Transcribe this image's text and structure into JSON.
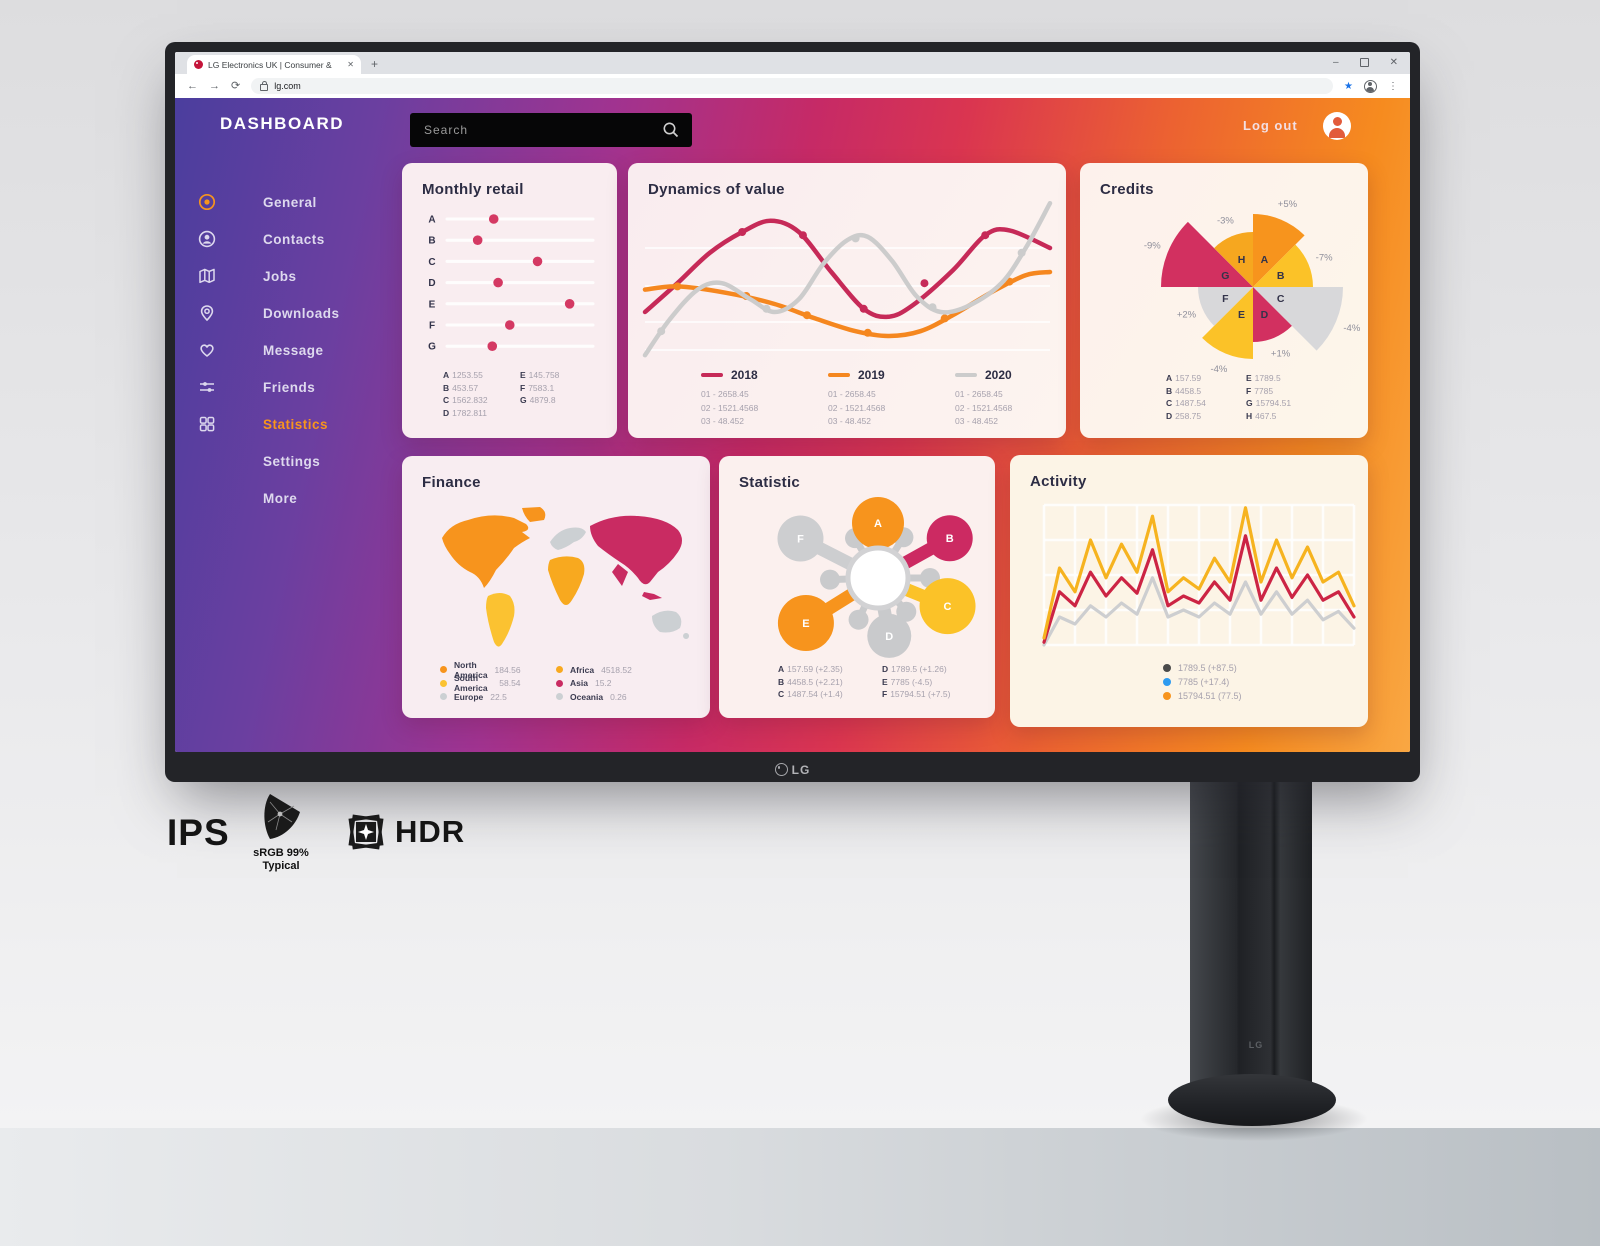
{
  "browser": {
    "tab_title": "LG Electronics UK | Consumer &",
    "url": "lg.com",
    "new_tab": "+",
    "tab_close": "✕",
    "controls": {
      "minimize": "–",
      "close": "✕"
    },
    "icons": {
      "back": "←",
      "forward": "→",
      "reload": "⟳",
      "star": "★",
      "menu": "⋮"
    }
  },
  "dashboard": {
    "title": "DASHBOARD",
    "search_placeholder": "Search",
    "logout_label": "Log out",
    "sidebar_items": [
      {
        "id": "general",
        "label": "General",
        "icon": "circle-dot",
        "icon_color": "#f7941d",
        "active": false
      },
      {
        "id": "contacts",
        "label": "Contacts",
        "icon": "user-circle",
        "active": false
      },
      {
        "id": "jobs",
        "label": "Jobs",
        "icon": "map",
        "active": false
      },
      {
        "id": "downloads",
        "label": "Downloads",
        "icon": "pin",
        "active": false
      },
      {
        "id": "message",
        "label": "Message",
        "icon": "heart",
        "active": false
      },
      {
        "id": "friends",
        "label": "Friends",
        "icon": "sliders",
        "active": false
      },
      {
        "id": "statistics",
        "label": "Statistics",
        "icon": "grid",
        "active": true
      },
      {
        "id": "settings",
        "label": "Settings",
        "icon": null,
        "active": false
      },
      {
        "id": "more",
        "label": "More",
        "icon": null,
        "active": false
      }
    ]
  },
  "chart_data": [
    {
      "id": "monthly-retail",
      "type": "scatter",
      "title": "Monthly retail",
      "rows": [
        {
          "label": "A",
          "pos": 0.32,
          "value": 1253.55
        },
        {
          "label": "B",
          "pos": 0.21,
          "value": 453.57
        },
        {
          "label": "C",
          "pos": 0.62,
          "value": 1562.832
        },
        {
          "label": "D",
          "pos": 0.35,
          "value": 1782.811
        },
        {
          "label": "E",
          "pos": 0.84,
          "value": 145.758
        },
        {
          "label": "F",
          "pos": 0.43,
          "value": 7583.1
        },
        {
          "label": "G",
          "pos": 0.31,
          "value": 4879.8
        }
      ],
      "dot_color": "#d43963",
      "footer": [
        [
          "A",
          "1253.55"
        ],
        [
          "B",
          "453.57"
        ],
        [
          "C",
          "1562.832"
        ],
        [
          "D",
          "1782.811"
        ],
        [
          "E",
          "145.758"
        ],
        [
          "F",
          "7583.1"
        ],
        [
          "G",
          "4879.8"
        ]
      ],
      "footer_split": 4
    },
    {
      "id": "dynamics",
      "type": "line",
      "title": "Dynamics of value",
      "series": [
        {
          "name": "2018",
          "color": "#c62a58",
          "points": [
            [
              0,
              0.7
            ],
            [
              0.08,
              0.52
            ],
            [
              0.16,
              0.33
            ],
            [
              0.24,
              0.2
            ],
            [
              0.31,
              0.13
            ],
            [
              0.38,
              0.2
            ],
            [
              0.46,
              0.45
            ],
            [
              0.54,
              0.68
            ],
            [
              0.6,
              0.73
            ],
            [
              0.66,
              0.66
            ],
            [
              0.76,
              0.44
            ],
            [
              0.84,
              0.22
            ],
            [
              0.9,
              0.19
            ],
            [
              1,
              0.3
            ]
          ],
          "markers": [
            [
              0.24,
              0.2
            ],
            [
              0.39,
              0.22
            ],
            [
              0.54,
              0.68
            ],
            [
              0.69,
              0.52
            ],
            [
              0.84,
              0.22
            ]
          ],
          "values": [
            "01 - 2658.45",
            "02 - 1521.4568",
            "03 - 48.452"
          ]
        },
        {
          "name": "2019",
          "color": "#f5871f",
          "points": [
            [
              0,
              0.56
            ],
            [
              0.08,
              0.54
            ],
            [
              0.2,
              0.58
            ],
            [
              0.32,
              0.65
            ],
            [
              0.42,
              0.74
            ],
            [
              0.52,
              0.82
            ],
            [
              0.6,
              0.85
            ],
            [
              0.68,
              0.82
            ],
            [
              0.76,
              0.72
            ],
            [
              0.86,
              0.57
            ],
            [
              0.94,
              0.47
            ],
            [
              1,
              0.45
            ]
          ],
          "markers": [
            [
              0.08,
              0.54
            ],
            [
              0.25,
              0.6
            ],
            [
              0.4,
              0.72
            ],
            [
              0.55,
              0.83
            ],
            [
              0.74,
              0.74
            ],
            [
              0.9,
              0.51
            ]
          ],
          "values": [
            "01 - 2658.45",
            "02 - 1521.4568",
            "03 - 48.452"
          ]
        },
        {
          "name": "2020",
          "color": "#cccccc",
          "points": [
            [
              0,
              0.97
            ],
            [
              0.06,
              0.75
            ],
            [
              0.13,
              0.56
            ],
            [
              0.19,
              0.52
            ],
            [
              0.26,
              0.62
            ],
            [
              0.32,
              0.7
            ],
            [
              0.38,
              0.62
            ],
            [
              0.44,
              0.4
            ],
            [
              0.5,
              0.25
            ],
            [
              0.55,
              0.23
            ],
            [
              0.61,
              0.38
            ],
            [
              0.67,
              0.6
            ],
            [
              0.73,
              0.7
            ],
            [
              0.8,
              0.66
            ],
            [
              0.88,
              0.52
            ],
            [
              0.94,
              0.3
            ],
            [
              1,
              0.02
            ]
          ],
          "markers": [
            [
              0.04,
              0.82
            ],
            [
              0.3,
              0.68
            ],
            [
              0.52,
              0.24
            ],
            [
              0.71,
              0.67
            ],
            [
              0.93,
              0.33
            ]
          ],
          "values": [
            "01 - 2658.45",
            "02 - 1521.4568",
            "03 - 48.452"
          ]
        }
      ]
    },
    {
      "id": "credits",
      "type": "pie",
      "title": "Credits",
      "sectors": [
        {
          "label": "A",
          "percent": "+5%",
          "color": "#f7941d",
          "r": 73
        },
        {
          "label": "B",
          "percent": "-7%",
          "color": "#fbc228",
          "r": 60
        },
        {
          "label": "C",
          "percent": "-4%",
          "color": "#d8d8da",
          "r": 90
        },
        {
          "label": "D",
          "percent": "+1%",
          "color": "#d23060",
          "r": 55
        },
        {
          "label": "E",
          "percent": "-4%",
          "color": "#fbc228",
          "r": 72
        },
        {
          "label": "F",
          "percent": "+2%",
          "color": "#d8d8da",
          "r": 55
        },
        {
          "label": "G",
          "percent": "-9%",
          "color": "#d23060",
          "r": 92
        },
        {
          "label": "H",
          "percent": "-3%",
          "color": "#f6a71f",
          "r": 55
        }
      ],
      "footer": [
        [
          "A",
          "157.59"
        ],
        [
          "B",
          "4458.5"
        ],
        [
          "C",
          "1487.54"
        ],
        [
          "D",
          "258.75"
        ],
        [
          "E",
          "1789.5"
        ],
        [
          "F",
          "7785"
        ],
        [
          "G",
          "15794.51"
        ],
        [
          "H",
          "467.5"
        ]
      ],
      "footer_split": 4
    },
    {
      "id": "finance",
      "type": "map",
      "title": "Finance",
      "regions": [
        {
          "name": "North America",
          "value": "184.56",
          "color": "#f7941d"
        },
        {
          "name": "South America",
          "value": "58.54",
          "color": "#fbc231"
        },
        {
          "name": "Europe",
          "value": "22.5",
          "color": "#ccd0d3"
        },
        {
          "name": "Africa",
          "value": "4518.52",
          "color": "#f8a91f"
        },
        {
          "name": "Asia",
          "value": "15.2",
          "color": "#c92b62"
        },
        {
          "name": "Oceania",
          "value": "0.26",
          "color": "#ccd0d3"
        }
      ],
      "legend_split": 3
    },
    {
      "id": "statistic",
      "type": "radial",
      "title": "Statistic",
      "petals": [
        {
          "label": "A",
          "color": "#f7941d",
          "angle": 0,
          "dist": 55,
          "r": 26
        },
        {
          "label": "B",
          "color": "#cc2a62",
          "angle": 61,
          "dist": 82,
          "r": 23
        },
        {
          "label": "C",
          "color": "#fbc228",
          "angle": 112,
          "dist": 75,
          "r": 28
        },
        {
          "label": "D",
          "color": "#c9cacc",
          "angle": 169,
          "dist": 59,
          "r": 22
        },
        {
          "label": "E",
          "color": "#f7941d",
          "angle": 238,
          "dist": 85,
          "r": 28
        },
        {
          "label": "F",
          "color": "#cdced0",
          "angle": 297,
          "dist": 87,
          "r": 23
        }
      ],
      "stubs": [
        {
          "angle": 32,
          "dist": 48
        },
        {
          "angle": 90,
          "dist": 52
        },
        {
          "angle": 140,
          "dist": 44
        },
        {
          "angle": 205,
          "dist": 46
        },
        {
          "angle": 268,
          "dist": 48
        },
        {
          "angle": 330,
          "dist": 46
        }
      ],
      "footer": [
        [
          "A",
          "157.59 (+2.35)"
        ],
        [
          "B",
          "4458.5 (+2.21)"
        ],
        [
          "C",
          "1487.54 (+1.4)"
        ],
        [
          "D",
          "1789.5 (+1.26)"
        ],
        [
          "E",
          "7785 (-4.5)"
        ],
        [
          "F",
          "15794.51 (+7.5)"
        ]
      ],
      "footer_split": 3
    },
    {
      "id": "activity",
      "type": "line",
      "title": "Activity",
      "series": [
        {
          "name": "gray",
          "color": "#cdced0",
          "values": [
            1.0,
            0.8,
            0.85,
            0.72,
            0.8,
            0.7,
            0.78,
            0.52,
            0.8,
            0.75,
            0.8,
            0.7,
            0.78,
            0.55,
            0.78,
            0.62,
            0.78,
            0.68,
            0.82,
            0.76,
            0.88
          ]
        },
        {
          "name": "crimson",
          "color": "#cc2444",
          "values": [
            0.98,
            0.62,
            0.72,
            0.48,
            0.65,
            0.52,
            0.63,
            0.32,
            0.72,
            0.65,
            0.7,
            0.55,
            0.68,
            0.22,
            0.68,
            0.45,
            0.66,
            0.5,
            0.68,
            0.62,
            0.8
          ]
        },
        {
          "name": "amber",
          "color": "#f6b31f",
          "values": [
            0.95,
            0.45,
            0.62,
            0.25,
            0.52,
            0.28,
            0.48,
            0.08,
            0.62,
            0.52,
            0.6,
            0.38,
            0.55,
            0.02,
            0.55,
            0.25,
            0.52,
            0.3,
            0.55,
            0.48,
            0.72
          ]
        }
      ],
      "legend": [
        {
          "color": "#4a4a4a",
          "text": "1789.5  (+87.5)"
        },
        {
          "color": "#2e9bf0",
          "text": "7785 (+17.4)"
        },
        {
          "color": "#f7941d",
          "text": "15794.51 (77.5)"
        }
      ]
    }
  ],
  "badges": {
    "ips": "IPS",
    "srgb": [
      "sRGB 99%",
      "Typical"
    ],
    "hdr": "HDR"
  },
  "monitor_brand": "LG"
}
